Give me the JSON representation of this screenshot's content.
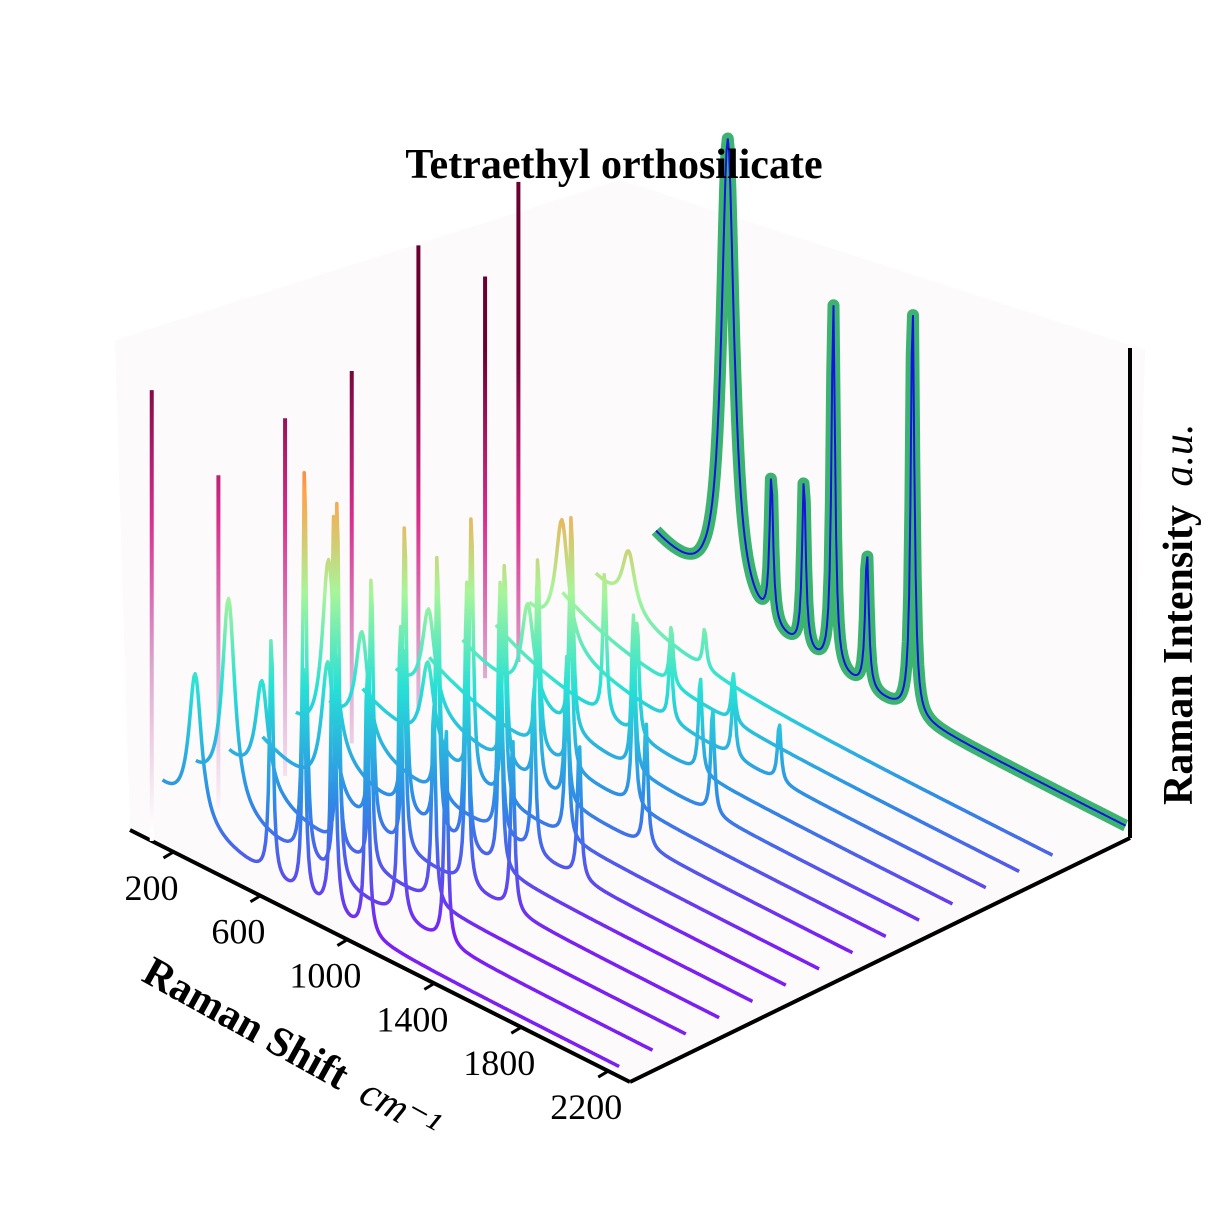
{
  "chart_data": {
    "type": "line",
    "projection": "3d-waterfall",
    "title": "Tetraethyl orthosilicate",
    "xlabel": "Raman Shift",
    "xlabel_unit": "cm⁻¹",
    "zlabel": "Raman Intensity",
    "zlabel_unit": "a.u.",
    "x_ticks": [
      200,
      600,
      1000,
      1400,
      1800,
      2200
    ],
    "xlim": [
      0,
      2300
    ],
    "ylim": [
      0,
      15
    ],
    "zlim": [
      0,
      1
    ],
    "grid": false,
    "background_color": "#fcfafb",
    "peak_shift_cm": [
      300,
      450,
      650,
      800,
      935,
      1090,
      1300,
      1450
    ],
    "series_count": 14,
    "series": [
      {
        "y": 0,
        "peaks_cm": [
          300,
          650,
          800,
          935,
          1090
        ],
        "peak_heights": [
          0.3,
          0.5,
          0.48,
          0.82,
          0.55
        ],
        "color_scale": "rainbow"
      },
      {
        "y": 1,
        "peaks_cm": [
          300,
          650,
          800,
          1090,
          1300
        ],
        "peak_heights": [
          0.42,
          0.82,
          0.8,
          0.62,
          0.45
        ],
        "color_scale": "rainbow"
      },
      {
        "y": 2,
        "peaks_cm": [
          300,
          650,
          800,
          1090
        ],
        "peak_heights": [
          0.22,
          0.35,
          0.36,
          0.42
        ],
        "color_scale": "rainbow"
      },
      {
        "y": 3,
        "peaks_cm": [
          450,
          650,
          800,
          1090,
          1300
        ],
        "peak_heights": [
          0.28,
          0.52,
          0.42,
          0.5,
          0.36
        ],
        "color_scale": "rainbow"
      },
      {
        "y": 4,
        "peaks_cm": [
          300,
          650,
          800,
          935,
          1090
        ],
        "peak_heights": [
          0.4,
          0.6,
          0.58,
          0.55,
          0.48
        ],
        "color_scale": "rainbow"
      },
      {
        "y": 5,
        "peaks_cm": [
          300,
          650,
          935,
          1090,
          1300
        ],
        "peak_heights": [
          0.22,
          0.45,
          0.52,
          0.35,
          0.28
        ],
        "color_scale": "rainbow"
      },
      {
        "y": 6,
        "peaks_cm": [
          450,
          650,
          800,
          1090
        ],
        "peak_heights": [
          0.18,
          0.55,
          0.44,
          0.34
        ],
        "color_scale": "rainbow"
      },
      {
        "y": 7,
        "peaks_cm": [
          300,
          650,
          800,
          935,
          1300
        ],
        "peak_heights": [
          0.2,
          0.42,
          0.42,
          0.3,
          0.26
        ],
        "color_scale": "rainbow"
      },
      {
        "y": 8,
        "peaks_cm": [
          650,
          800,
          1090
        ],
        "peak_heights": [
          0.4,
          0.36,
          0.3
        ],
        "color_scale": "rainbow"
      },
      {
        "y": 9,
        "peaks_cm": [
          450,
          650,
          935,
          1300
        ],
        "peak_heights": [
          0.2,
          0.45,
          0.32,
          0.22
        ],
        "color_scale": "rainbow"
      },
      {
        "y": 10,
        "peaks_cm": [
          650,
          800,
          1090
        ],
        "peak_heights": [
          0.3,
          0.24,
          0.2
        ],
        "color_scale": "rainbow"
      },
      {
        "y": 11,
        "peaks_cm": [
          300,
          800,
          1090,
          1300
        ],
        "peak_heights": [
          0.25,
          0.15,
          0.14,
          0.12
        ],
        "color_scale": "rainbow"
      },
      {
        "y": 12,
        "peaks_cm": [
          650,
          935
        ],
        "peak_heights": [
          0.12,
          0.1
        ],
        "color_scale": "rainbow"
      },
      {
        "y": 13,
        "peaks_cm": [
          300,
          650
        ],
        "peak_heights": [
          0.12,
          0.08
        ],
        "color_scale": "rainbow"
      }
    ],
    "back_series": {
      "y": 15,
      "line_color": "#1414dc",
      "band_color": "#3cb371",
      "peaks_cm": [
        450,
        650,
        800,
        935,
        1090,
        1300
      ],
      "peak_heights": [
        0.95,
        0.3,
        0.35,
        0.75,
        0.28,
        0.85
      ]
    },
    "side_lines": {
      "color_scale": "magenta",
      "y_positions": [
        0,
        2,
        4,
        6,
        8,
        10,
        11
      ],
      "heights": [
        0.92,
        0.68,
        0.73,
        0.76,
        0.95,
        0.82,
        0.98
      ]
    }
  }
}
